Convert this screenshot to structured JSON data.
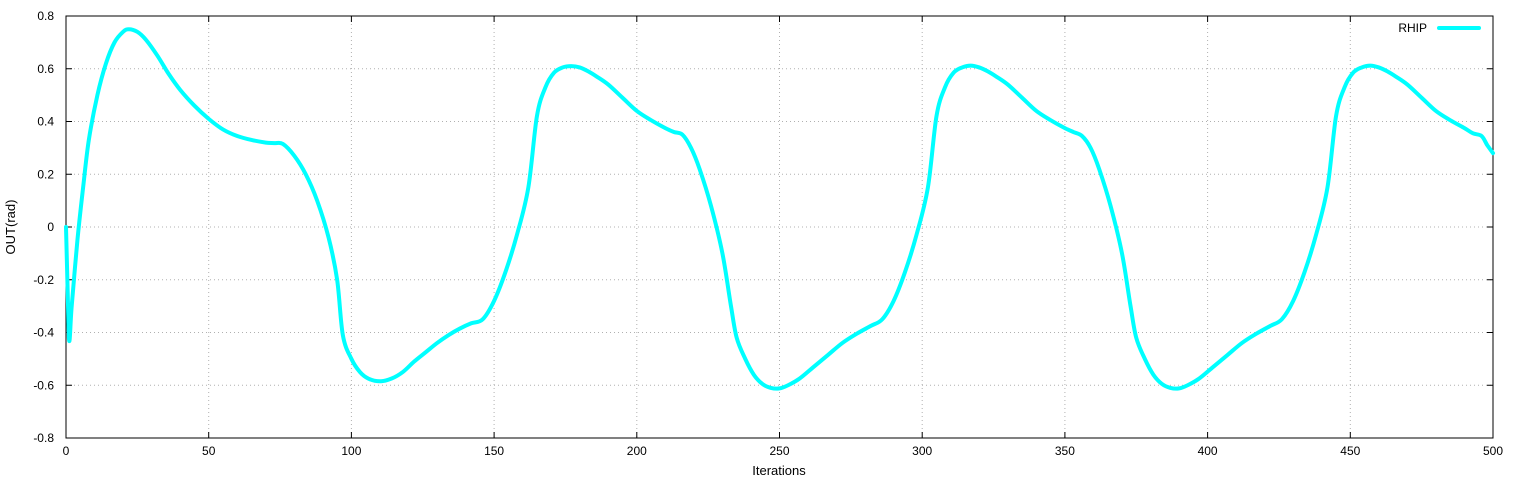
{
  "chart_data": {
    "type": "line",
    "title": "",
    "xlabel": "Iterations",
    "ylabel": "OUT(rad)",
    "xlim": [
      0,
      500
    ],
    "ylim": [
      -0.8,
      0.8
    ],
    "x_ticks": [
      0,
      50,
      100,
      150,
      200,
      250,
      300,
      350,
      400,
      450,
      500
    ],
    "y_ticks": [
      -0.8,
      -0.6,
      -0.4,
      -0.2,
      0,
      0.2,
      0.4,
      0.6,
      0.8
    ],
    "x_tick_labels": [
      "0",
      "50",
      "100",
      "150",
      "200",
      "250",
      "300",
      "350",
      "400",
      "450",
      "500"
    ],
    "y_tick_labels": [
      "-0.8",
      "-0.6",
      "-0.4",
      "-0.2",
      "0",
      "0.2",
      "0.4",
      "0.6",
      "0.8"
    ],
    "grid": true,
    "legend_position": "top-right",
    "series": [
      {
        "name": "RHIP",
        "color": "#00ffff",
        "x": [
          0,
          1,
          2,
          4,
          6,
          8,
          11,
          14,
          17,
          20,
          22,
          25,
          28,
          32,
          36,
          40,
          45,
          50,
          55,
          60,
          65,
          70,
          73,
          76,
          80,
          84,
          88,
          92,
          95,
          97,
          100,
          103,
          106,
          110,
          114,
          118,
          122,
          126,
          130,
          134,
          138,
          142,
          146,
          150,
          154,
          158,
          162,
          165,
          168,
          171,
          174,
          177,
          180,
          183,
          186,
          190,
          195,
          200,
          205,
          210,
          213,
          216,
          219,
          222,
          226,
          230,
          233,
          235,
          238,
          241,
          244,
          247,
          250,
          253,
          257,
          262,
          267,
          272,
          277,
          282,
          286,
          290,
          294,
          298,
          302,
          305,
          308,
          311,
          314,
          317,
          320,
          323,
          326,
          330,
          335,
          340,
          345,
          350,
          353,
          356,
          359,
          362,
          366,
          370,
          373,
          375,
          378,
          381,
          384,
          387,
          390,
          393,
          397,
          402,
          407,
          412,
          417,
          422,
          426,
          430,
          434,
          438,
          442,
          445,
          448,
          451,
          454,
          457,
          460,
          463,
          466,
          470,
          475,
          480,
          485,
          490,
          493,
          496,
          498,
          500
        ],
        "y": [
          0.0,
          -0.42,
          -0.3,
          -0.05,
          0.15,
          0.33,
          0.5,
          0.62,
          0.7,
          0.74,
          0.75,
          0.74,
          0.71,
          0.65,
          0.58,
          0.52,
          0.46,
          0.41,
          0.37,
          0.345,
          0.33,
          0.32,
          0.318,
          0.315,
          0.27,
          0.2,
          0.1,
          -0.04,
          -0.2,
          -0.41,
          -0.5,
          -0.55,
          -0.575,
          -0.585,
          -0.575,
          -0.55,
          -0.51,
          -0.475,
          -0.44,
          -0.41,
          -0.385,
          -0.365,
          -0.35,
          -0.28,
          -0.17,
          -0.03,
          0.15,
          0.42,
          0.53,
          0.585,
          0.605,
          0.61,
          0.605,
          0.59,
          0.57,
          0.54,
          0.49,
          0.44,
          0.405,
          0.375,
          0.36,
          0.35,
          0.3,
          0.22,
          0.08,
          -0.1,
          -0.3,
          -0.42,
          -0.5,
          -0.56,
          -0.595,
          -0.61,
          -0.612,
          -0.6,
          -0.575,
          -0.53,
          -0.485,
          -0.44,
          -0.405,
          -0.375,
          -0.35,
          -0.28,
          -0.17,
          -0.03,
          0.15,
          0.42,
          0.53,
          0.585,
          0.605,
          0.612,
          0.605,
          0.59,
          0.57,
          0.54,
          0.49,
          0.44,
          0.405,
          0.375,
          0.36,
          0.345,
          0.3,
          0.22,
          0.08,
          -0.1,
          -0.3,
          -0.42,
          -0.5,
          -0.56,
          -0.595,
          -0.61,
          -0.612,
          -0.6,
          -0.575,
          -0.53,
          -0.485,
          -0.44,
          -0.405,
          -0.375,
          -0.35,
          -0.28,
          -0.17,
          -0.03,
          0.15,
          0.42,
          0.53,
          0.585,
          0.605,
          0.612,
          0.605,
          0.59,
          0.57,
          0.54,
          0.49,
          0.44,
          0.405,
          0.375,
          0.355,
          0.345,
          0.31,
          0.28
        ]
      }
    ]
  }
}
